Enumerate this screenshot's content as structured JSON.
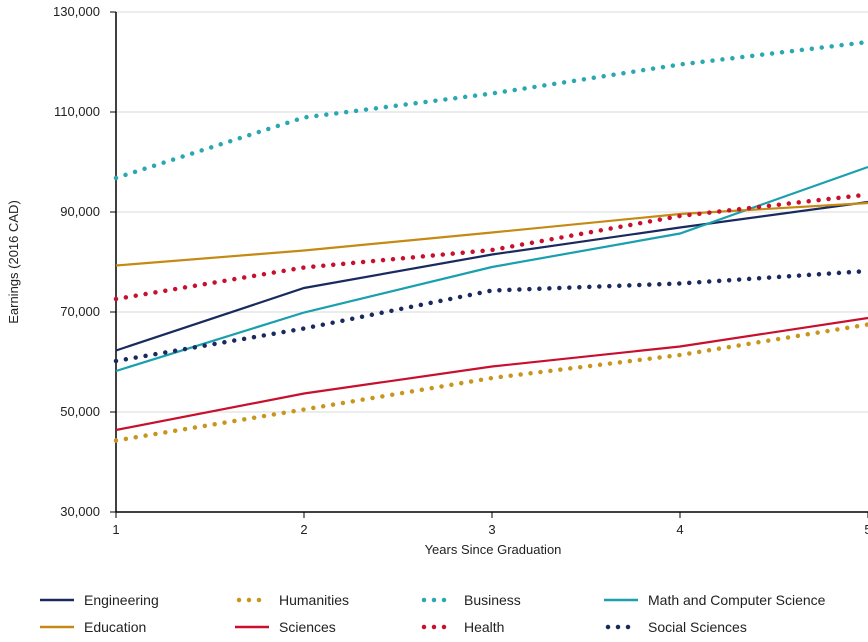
{
  "chart_data": {
    "type": "line",
    "title": "",
    "xlabel": "Years Since Graduation",
    "ylabel": "Earnings (2016 CAD)",
    "x": [
      1,
      2,
      3,
      4,
      5
    ],
    "x_tick_labels": [
      "1",
      "2",
      "3",
      "4",
      "5"
    ],
    "ylim": [
      30000,
      130000
    ],
    "y_ticks": [
      30000,
      50000,
      70000,
      90000,
      110000,
      130000
    ],
    "y_tick_labels": [
      "30,000",
      "50,000",
      "70,000",
      "90,000",
      "110,000",
      "130,000"
    ],
    "grid": "horizontal",
    "legend_placement": "bottom",
    "series": [
      {
        "name": "Engineering",
        "color": "#1b2a5e",
        "style": "solid",
        "values": [
          62300,
          74800,
          81500,
          86900,
          92000
        ]
      },
      {
        "name": "Humanities",
        "color": "#c8961e",
        "style": "dotted",
        "values": [
          44300,
          50500,
          56800,
          61400,
          67500
        ]
      },
      {
        "name": "Business",
        "color": "#2aa8b2",
        "style": "dotted",
        "values": [
          96800,
          108900,
          113700,
          119500,
          124000
        ]
      },
      {
        "name": "Math and Computer Science",
        "color": "#1a9fae",
        "style": "solid",
        "values": [
          58200,
          69900,
          79000,
          85700,
          99000
        ]
      },
      {
        "name": "Education",
        "color": "#c48a14",
        "style": "solid",
        "values": [
          79300,
          82300,
          85900,
          89600,
          91800
        ]
      },
      {
        "name": "Sciences",
        "color": "#c8102e",
        "style": "solid",
        "values": [
          46400,
          53700,
          59100,
          63100,
          68800
        ]
      },
      {
        "name": "Health",
        "color": "#c8102e",
        "style": "dotted",
        "values": [
          72600,
          78900,
          82400,
          89200,
          93500
        ]
      },
      {
        "name": "Social Sciences",
        "color": "#1b2a5e",
        "style": "dotted",
        "values": [
          60200,
          66700,
          74300,
          75700,
          78200
        ]
      }
    ]
  }
}
